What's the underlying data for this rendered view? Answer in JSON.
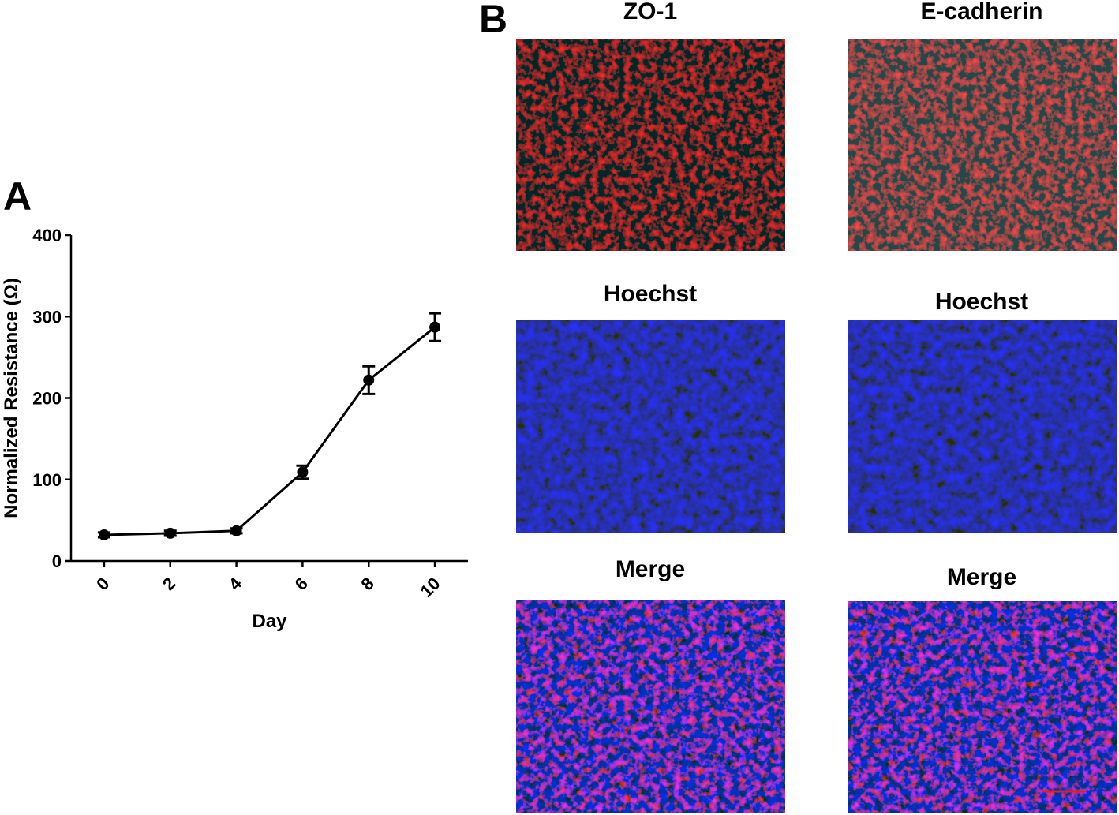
{
  "chart_data": {
    "type": "line",
    "ylabel": "Normalized Resistance (Ω)",
    "xlabel": "Day",
    "x": [
      0,
      2,
      4,
      6,
      8,
      10
    ],
    "series": [
      {
        "color": "#000000",
        "values": [
          32,
          34,
          37,
          109,
          222,
          287
        ],
        "errors": [
          3,
          3,
          3,
          8,
          17,
          17
        ]
      }
    ],
    "xlim": [
      -1,
      11
    ],
    "xticks": [
      0,
      2,
      4,
      6,
      8,
      10
    ],
    "ylim": [
      0,
      400
    ],
    "yticks": [
      0,
      100,
      200,
      300,
      400
    ]
  },
  "panels": {
    "a_label": "A",
    "b_label": "B",
    "images": [
      "ZO-1",
      "E-cadherin",
      "Hoechst",
      "Hoechst",
      "Merge",
      "Merge"
    ]
  }
}
